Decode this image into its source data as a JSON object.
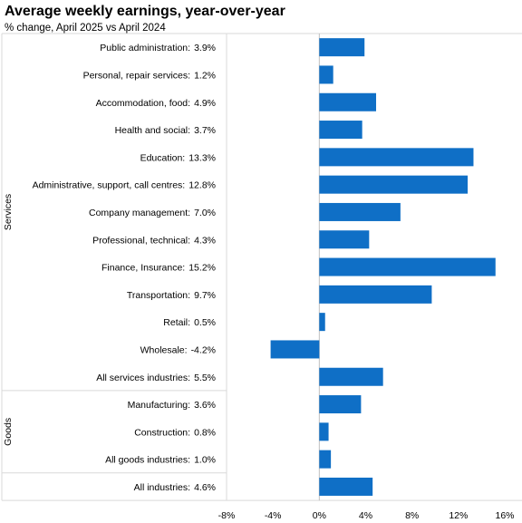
{
  "chart_data": {
    "type": "bar",
    "orientation": "horizontal",
    "title": "Average weekly earnings, year-over-year",
    "subtitle": "% change, April 2025 vs April 2024",
    "xlabel": "",
    "ylabel": "",
    "xlim": [
      -8,
      16
    ],
    "x_ticks": [
      -8,
      -4,
      0,
      4,
      8,
      12,
      16
    ],
    "x_tick_labels": [
      "-8%",
      "-4%",
      "0%",
      "4%",
      "8%",
      "12%",
      "16%"
    ],
    "grid": false,
    "legend": "none",
    "bar_color": "#0F6FC6",
    "groups": [
      {
        "name": "Services",
        "categories": [
          {
            "label": "Public administration:",
            "value": 3.9,
            "value_label": "3.9%"
          },
          {
            "label": "Personal, repair services:",
            "value": 1.2,
            "value_label": "1.2%"
          },
          {
            "label": "Accommodation, food:",
            "value": 4.9,
            "value_label": "4.9%"
          },
          {
            "label": "Health and social:",
            "value": 3.7,
            "value_label": "3.7%"
          },
          {
            "label": "Education:",
            "value": 13.3,
            "value_label": "13.3%"
          },
          {
            "label": "Administrative, support, call centres:",
            "value": 12.8,
            "value_label": "12.8%"
          },
          {
            "label": "Company management:",
            "value": 7.0,
            "value_label": "7.0%"
          },
          {
            "label": "Professional, technical:",
            "value": 4.3,
            "value_label": "4.3%"
          },
          {
            "label": "Finance, Insurance:",
            "value": 15.2,
            "value_label": "15.2%"
          },
          {
            "label": "Transportation:",
            "value": 9.7,
            "value_label": "9.7%"
          },
          {
            "label": "Retail:",
            "value": 0.5,
            "value_label": "0.5%"
          },
          {
            "label": "Wholesale:",
            "value": -4.2,
            "value_label": "-4.2%"
          },
          {
            "label": "All services industries:",
            "value": 5.5,
            "value_label": "5.5%"
          }
        ]
      },
      {
        "name": "Goods",
        "categories": [
          {
            "label": "Manufacturing:",
            "value": 3.6,
            "value_label": "3.6%"
          },
          {
            "label": "Construction:",
            "value": 0.8,
            "value_label": "0.8%"
          },
          {
            "label": "All goods industries:",
            "value": 1.0,
            "value_label": "1.0%"
          }
        ]
      },
      {
        "name": "",
        "categories": [
          {
            "label": "All industries:",
            "value": 4.6,
            "value_label": "4.6%"
          }
        ]
      }
    ]
  }
}
